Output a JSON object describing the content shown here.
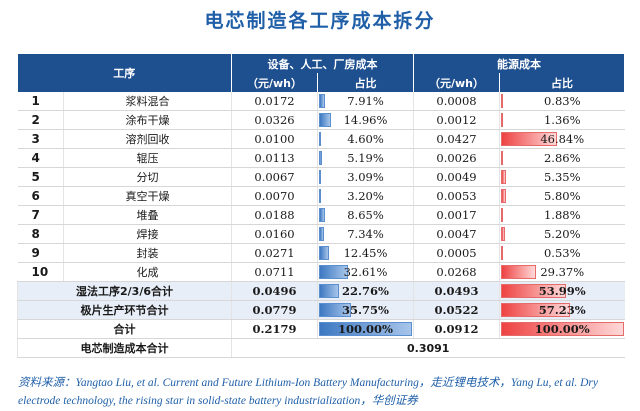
{
  "title": "电芯制造各工序成本拆分",
  "headers": {
    "process": "工序",
    "group_equipment": "设备、人工、厂房成本",
    "group_energy": "能源成本",
    "unit1": "（元/wh）",
    "share1": "占比",
    "unit2": "（元/wh）",
    "share2": "占比"
  },
  "rows": [
    {
      "idx": "1",
      "name": "浆料混合",
      "c1": "0.0172",
      "p1": "7.91%",
      "c2": "0.0008",
      "p2": "0.83%"
    },
    {
      "idx": "2",
      "name": "涂布干燥",
      "c1": "0.0326",
      "p1": "14.96%",
      "c2": "0.0012",
      "p2": "1.36%"
    },
    {
      "idx": "3",
      "name": "溶剂回收",
      "c1": "0.0100",
      "p1": "4.60%",
      "c2": "0.0427",
      "p2": "46.84%"
    },
    {
      "idx": "4",
      "name": "辊压",
      "c1": "0.0113",
      "p1": "5.19%",
      "c2": "0.0026",
      "p2": "2.86%"
    },
    {
      "idx": "5",
      "name": "分切",
      "c1": "0.0067",
      "p1": "3.09%",
      "c2": "0.0049",
      "p2": "5.35%"
    },
    {
      "idx": "6",
      "name": "真空干燥",
      "c1": "0.0070",
      "p1": "3.20%",
      "c2": "0.0053",
      "p2": "5.80%"
    },
    {
      "idx": "7",
      "name": "堆叠",
      "c1": "0.0188",
      "p1": "8.65%",
      "c2": "0.0017",
      "p2": "1.88%"
    },
    {
      "idx": "8",
      "name": "焊接",
      "c1": "0.0160",
      "p1": "7.34%",
      "c2": "0.0047",
      "p2": "5.20%"
    },
    {
      "idx": "9",
      "name": "封装",
      "c1": "0.0271",
      "p1": "12.45%",
      "c2": "0.0005",
      "p2": "0.53%"
    },
    {
      "idx": "10",
      "name": "化成",
      "c1": "0.0711",
      "p1": "32.61%",
      "c2": "0.0268",
      "p2": "29.37%"
    }
  ],
  "subtotals": [
    {
      "name": "湿法工序2/3/6合计",
      "c1": "0.0496",
      "p1": "22.76%",
      "c2": "0.0493",
      "p2": "53.99%"
    },
    {
      "name": "极片生产环节合计",
      "c1": "0.0779",
      "p1": "35.75%",
      "c2": "0.0522",
      "p2": "57.23%"
    }
  ],
  "total": {
    "name": "合计",
    "c1": "0.2179",
    "p1": "100.00%",
    "c2": "0.0912",
    "p2": "100.00%"
  },
  "grand": {
    "name": "电芯制造成本合计",
    "value": "0.3091"
  },
  "source": "资料来源：Yangtao Liu, et al. Current and Future Lithium-Ion Battery Manufacturing，走近锂电技术，Yang Lu, et al. Dry electrode technology, the rising star in solid-state battery industrialization，华创证券",
  "colors": {
    "header": "#1e4f8f",
    "title": "#1f5fa8",
    "blue_bar": "#3d78c2",
    "red_bar": "#ee4242"
  }
}
